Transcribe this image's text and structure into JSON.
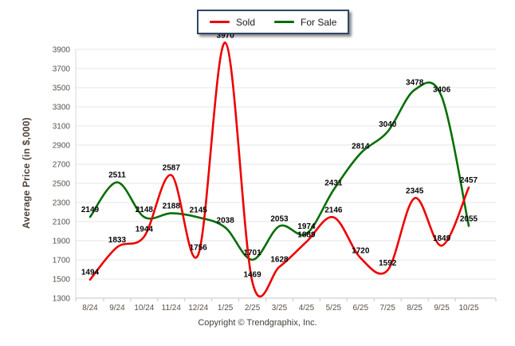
{
  "chart_data": {
    "type": "line",
    "title": "",
    "ylabel": "Average Price (in $,000)",
    "xlabel": "",
    "ylim": [
      1300,
      3900
    ],
    "ytick_step": 200,
    "grid": "horizontal",
    "legend_position": "top-center",
    "point_labels_visible": true,
    "categories": [
      "8/24",
      "9/24",
      "10/24",
      "11/24",
      "12/24",
      "1/25",
      "2/25",
      "3/25",
      "4/25",
      "5/25",
      "6/25",
      "7/25",
      "8/25",
      "9/25",
      "10/25"
    ],
    "series": [
      {
        "name": "Sold",
        "color": "#ee0000",
        "values": [
          1494,
          1833,
          1944,
          2587,
          1756,
          3970,
          1469,
          1628,
          1889,
          2146,
          1720,
          1592,
          2345,
          1849,
          2457
        ]
      },
      {
        "name": "For Sale",
        "color": "#066e06",
        "values": [
          2149,
          2511,
          2148,
          2188,
          2145,
          2038,
          1701,
          2053,
          1974,
          2431,
          2814,
          3040,
          3478,
          3406,
          2055
        ]
      }
    ]
  },
  "legend": {
    "border_color": "#2f4565",
    "items": [
      {
        "label": "Sold",
        "color": "#ee0000"
      },
      {
        "label": "For Sale",
        "color": "#066e06"
      }
    ]
  },
  "footer": {
    "copyright": "Copyright © Trendgraphix, Inc."
  }
}
